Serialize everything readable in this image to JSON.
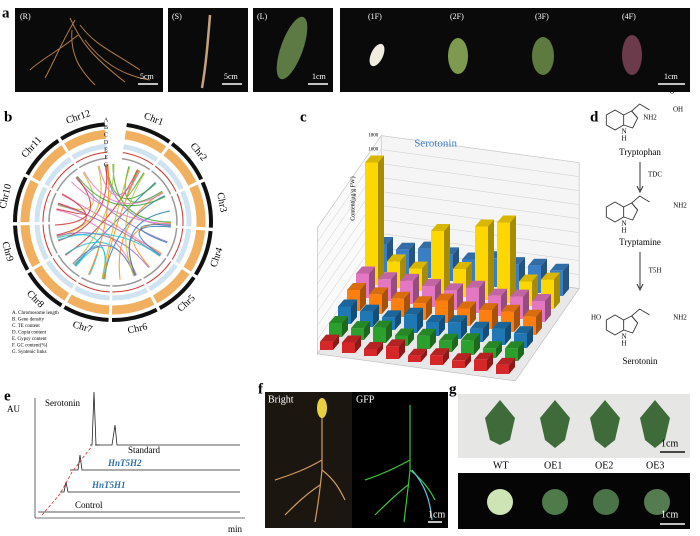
{
  "panel_labels": [
    "a",
    "b",
    "c",
    "d",
    "e",
    "f",
    "g"
  ],
  "panel_a": {
    "labels": [
      "(R)",
      "(S)",
      "(L)",
      "(1F)",
      "(2F)",
      "(3F)",
      "(4F)"
    ],
    "scale_bars": [
      "5cm",
      "5cm",
      "1cm",
      "1cm"
    ]
  },
  "panel_b": {
    "chromosomes": [
      "Chr1",
      "Chr2",
      "Chr3",
      "Chr4",
      "Chr5",
      "Chr6",
      "Chr7",
      "Chr8",
      "Chr9",
      "Chr10",
      "Chr11",
      "Chr12"
    ],
    "tracks": [
      "A",
      "B",
      "C",
      "D",
      "E",
      "F",
      "G"
    ],
    "legend": [
      "A. Chromosome length",
      "B. Gene density",
      "C. TE content",
      "D. Copia content",
      "E. Gypsy content",
      "F. GC content(%)",
      "G. Syntenic links"
    ]
  },
  "chart_data": {
    "type": "bar3d",
    "annotation": "Serotonin",
    "ylabel": "Content(μg/g FW)",
    "ylim": [
      0,
      1800
    ],
    "yticks": [
      200,
      400,
      600,
      800,
      1000,
      1200,
      1400,
      1600,
      1800
    ],
    "colors": [
      "#d62728",
      "#2ca02c",
      "#1f77b4",
      "#ff7f0e",
      "#e377c2",
      "#ffd700",
      "#3a7fc4",
      "#9e9e9e"
    ],
    "values": [
      [
        120,
        150,
        100,
        180,
        90,
        140,
        110,
        160,
        130
      ],
      [
        200,
        170,
        220,
        150,
        190,
        160,
        210,
        140,
        180
      ],
      [
        250,
        220,
        180,
        260,
        200,
        240,
        190,
        230,
        210
      ],
      [
        300,
        280,
        260,
        240,
        320,
        250,
        270,
        290,
        260
      ],
      [
        350,
        310,
        330,
        300,
        280,
        360,
        290,
        320,
        300
      ],
      [
        1750,
        380,
        320,
        900,
        400,
        1050,
        1150,
        350,
        420
      ],
      [
        400,
        360,
        420,
        380,
        350,
        410,
        370,
        390,
        360
      ]
    ]
  },
  "panel_d": {
    "compounds": [
      "Tryptophan",
      "Tryptamine",
      "Serotonin"
    ],
    "enzymes": [
      "TDC",
      "T5H"
    ],
    "atoms": [
      "OH",
      "O",
      "NH2",
      "N",
      "H",
      "NH2",
      "N",
      "H",
      "HO",
      "NH2",
      "N",
      "H"
    ]
  },
  "panel_e": {
    "y_label": "AU",
    "x_label": "min",
    "peak": "Serotonin",
    "traces": [
      "Standard",
      "HnT5H2",
      "HnT5H1",
      "Control"
    ]
  },
  "panel_f": {
    "labels": [
      "Bright",
      "GFP"
    ],
    "scale_bar": "1cm"
  },
  "panel_g": {
    "labels": [
      "WT",
      "OE1",
      "OE2",
      "OE3"
    ],
    "scale_bars": [
      "1cm",
      "1cm"
    ]
  }
}
